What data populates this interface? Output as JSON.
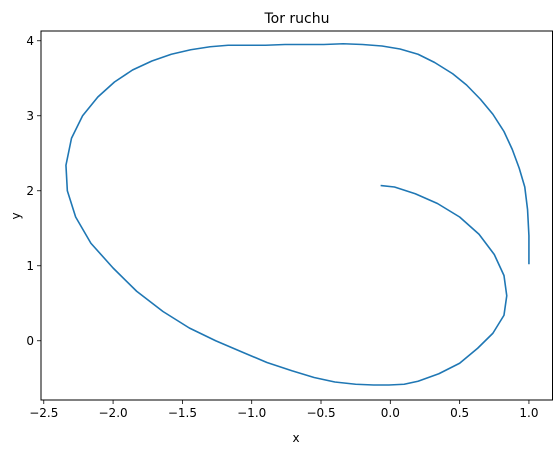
{
  "chart_data": {
    "type": "line",
    "title": "Tor ruchu",
    "xlabel": "x",
    "ylabel": "y",
    "xlim": [
      -2.52,
      1.17
    ],
    "ylim": [
      -0.79,
      4.13
    ],
    "xticks": [
      -2.5,
      -2.0,
      -1.5,
      -1.0,
      -0.5,
      0.0,
      0.5,
      1.0
    ],
    "xtick_labels": [
      "−2.5",
      "−2.0",
      "−1.5",
      "−1.0",
      "−0.5",
      "0.0",
      "0.5",
      "1.0"
    ],
    "yticks": [
      0,
      1,
      2,
      3,
      4
    ],
    "ytick_labels": [
      "0",
      "1",
      "2",
      "3",
      "4"
    ],
    "grid": false,
    "line_color": "#1f77b4",
    "series": [
      {
        "x": [
          1.0,
          1.0,
          0.99,
          0.97,
          0.93,
          0.88,
          0.82,
          0.74,
          0.65,
          0.55,
          0.45,
          0.32,
          0.2,
          0.07,
          -0.06,
          -0.2,
          -0.34,
          -0.48,
          -0.62,
          -0.76,
          -0.9,
          -1.04,
          -1.17,
          -1.3,
          -1.44,
          -1.58,
          -1.72,
          -1.86,
          -1.99,
          -2.11,
          -2.22,
          -2.3,
          -2.34,
          -2.33,
          -2.27,
          -2.16,
          -2.0,
          -1.83,
          -1.64,
          -1.45,
          -1.26,
          -1.07,
          -0.89,
          -0.71,
          -0.55,
          -0.4,
          -0.25,
          -0.12,
          -0.01,
          0.1,
          0.2,
          0.35,
          0.5,
          0.63,
          0.74,
          0.82,
          0.84,
          0.82,
          0.75,
          0.64,
          0.5,
          0.34,
          0.18,
          0.03,
          -0.07
        ],
        "y": [
          1.02,
          1.4,
          1.75,
          2.05,
          2.3,
          2.55,
          2.79,
          3.02,
          3.22,
          3.41,
          3.56,
          3.71,
          3.82,
          3.89,
          3.93,
          3.95,
          3.96,
          3.95,
          3.95,
          3.95,
          3.94,
          3.94,
          3.94,
          3.92,
          3.88,
          3.82,
          3.73,
          3.61,
          3.45,
          3.25,
          3.0,
          2.7,
          2.34,
          2.0,
          1.65,
          1.3,
          0.97,
          0.66,
          0.39,
          0.17,
          0.0,
          -0.15,
          -0.29,
          -0.4,
          -0.49,
          -0.55,
          -0.58,
          -0.59,
          -0.59,
          -0.58,
          -0.54,
          -0.44,
          -0.3,
          -0.1,
          0.1,
          0.34,
          0.6,
          0.87,
          1.15,
          1.42,
          1.65,
          1.83,
          1.96,
          2.05,
          2.07
        ]
      }
    ]
  }
}
